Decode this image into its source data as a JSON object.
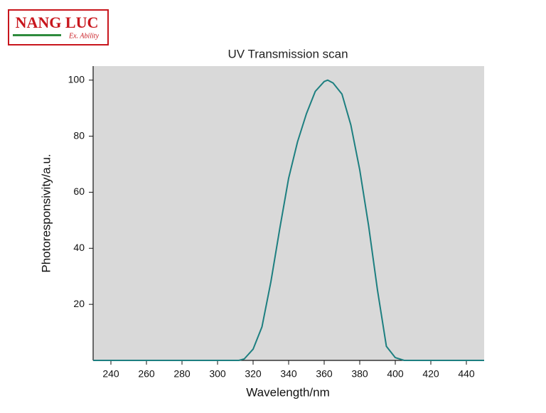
{
  "logo": {
    "name": "NANG LUC",
    "tagline": "Ex. Ability"
  },
  "chart_data": {
    "type": "line",
    "title": "UV Transmission scan",
    "x_label": "Wavelength/nm",
    "y_label": "Photoresponsivity/a.u.",
    "xlim": [
      230,
      450
    ],
    "ylim": [
      0,
      105
    ],
    "xticks": [
      240,
      260,
      280,
      300,
      320,
      340,
      360,
      380,
      400,
      420,
      440
    ],
    "yticks": [
      20,
      40,
      60,
      80,
      100
    ],
    "series": [
      {
        "name": "UV Transmission",
        "color": "#1d7f80",
        "x": [
          230,
          312,
          315,
          320,
          325,
          330,
          335,
          340,
          345,
          350,
          355,
          360,
          362,
          365,
          370,
          375,
          380,
          385,
          390,
          395,
          400,
          405,
          450
        ],
        "values": [
          0,
          0,
          0.5,
          4,
          12,
          28,
          47,
          65,
          78,
          88,
          96,
          99.5,
          100,
          99,
          95,
          84,
          68,
          48,
          25,
          5,
          1,
          0,
          0
        ]
      }
    ]
  }
}
